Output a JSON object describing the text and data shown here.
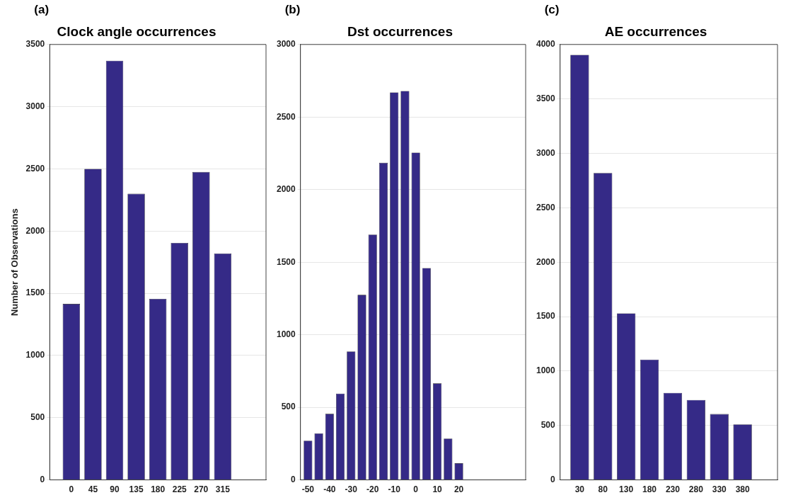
{
  "chart_data": [
    {
      "type": "bar",
      "title": "Clock angle occurrences",
      "ylabel": "Number of Observations",
      "annotations": [
        "(a)"
      ],
      "x": [
        0,
        45,
        90,
        135,
        180,
        225,
        270,
        315
      ],
      "series": [
        {
          "color": "#352a87",
          "values": [
            1415,
            2500,
            3370,
            2300,
            1455,
            1905,
            2475,
            1820
          ]
        }
      ],
      "xlim": [
        -45,
        405
      ],
      "xticks": [
        0,
        45,
        90,
        135,
        180,
        225,
        270,
        315
      ],
      "ylim": [
        0,
        3500
      ],
      "yticks": [
        0,
        500,
        1000,
        1500,
        2000,
        2500,
        3000,
        3500
      ],
      "grid": "y",
      "legend": false
    },
    {
      "type": "bar",
      "title": "Dst occurrences",
      "annotations": [
        "(b)"
      ],
      "x": [
        -50,
        -45,
        -40,
        -35,
        -30,
        -25,
        -20,
        -15,
        -10,
        -5,
        0,
        5,
        10,
        15,
        20
      ],
      "series": [
        {
          "color": "#352a87",
          "values": [
            270,
            320,
            455,
            595,
            885,
            1275,
            1690,
            2185,
            2670,
            2680,
            2255,
            1460,
            665,
            285,
            115
          ]
        }
      ],
      "xlim": [
        -53.5,
        51
      ],
      "xticks": [
        -50,
        -40,
        -30,
        -20,
        -10,
        0,
        10,
        20
      ],
      "ylim": [
        0,
        3000
      ],
      "yticks": [
        0,
        500,
        1000,
        1500,
        2000,
        2500,
        3000
      ],
      "grid": "y",
      "legend": false
    },
    {
      "type": "bar",
      "title": "AE occurrences",
      "annotations": [
        "(c)"
      ],
      "x": [
        30,
        80,
        130,
        180,
        230,
        280,
        330,
        380
      ],
      "series": [
        {
          "color": "#352a87",
          "values": [
            3905,
            2820,
            1530,
            1105,
            800,
            735,
            605,
            510
          ]
        }
      ],
      "xlim": [
        -12,
        455
      ],
      "xticks": [
        30,
        80,
        130,
        180,
        230,
        280,
        330,
        380
      ],
      "ylim": [
        0,
        4000
      ],
      "yticks": [
        0,
        500,
        1000,
        1500,
        2000,
        2500,
        3000,
        3500,
        4000
      ],
      "grid": "y",
      "legend": false
    }
  ]
}
